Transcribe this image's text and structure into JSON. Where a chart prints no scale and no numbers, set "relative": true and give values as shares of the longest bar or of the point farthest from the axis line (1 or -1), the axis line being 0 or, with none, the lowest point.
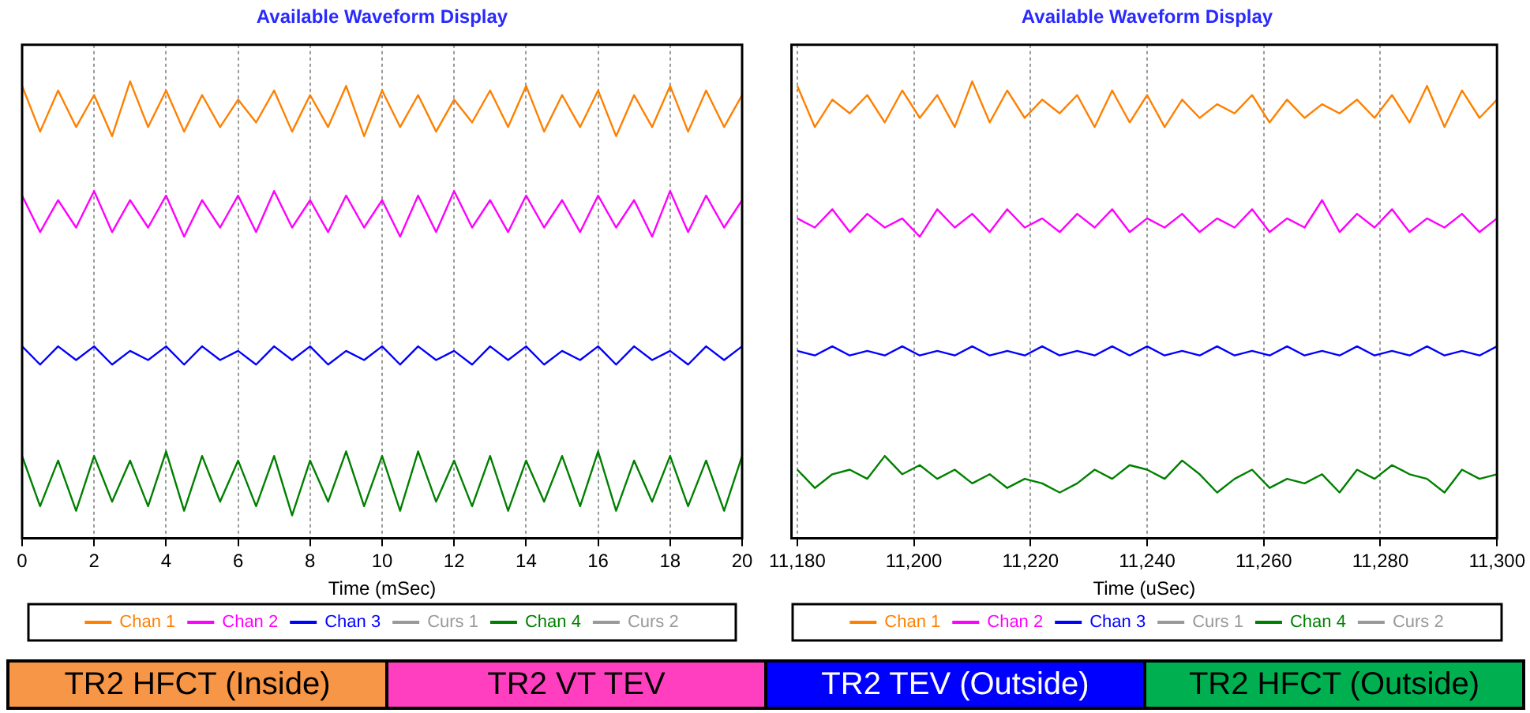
{
  "chart_data": [
    {
      "type": "line",
      "title": "Available Waveform Display",
      "xlabel": "Time (mSec)",
      "relative": true,
      "grid": "x",
      "legend": "bottom",
      "marker": "none",
      "line_style": "solid",
      "x": [
        0,
        0.5,
        1,
        1.5,
        2,
        2.5,
        3,
        3.5,
        4,
        4.5,
        5,
        5.5,
        6,
        6.5,
        7,
        7.5,
        8,
        8.5,
        9,
        9.5,
        10,
        10.5,
        11,
        11.5,
        12,
        12.5,
        13,
        13.5,
        14,
        14.5,
        15,
        15.5,
        16,
        16.5,
        17,
        17.5,
        18,
        18.5,
        19,
        19.5,
        20
      ],
      "xlim": [
        0,
        20
      ],
      "xticks": [
        0,
        2,
        4,
        6,
        8,
        10,
        12,
        14,
        16,
        18,
        20
      ],
      "series": [
        {
          "name": "Chan 1",
          "color": "#ff8000",
          "values": [
            0.99,
            0.89,
            0.98,
            0.9,
            0.97,
            0.88,
            1,
            0.9,
            0.98,
            0.89,
            0.97,
            0.9,
            0.96,
            0.91,
            0.98,
            0.89,
            0.97,
            0.9,
            0.99,
            0.88,
            0.98,
            0.9,
            0.97,
            0.89,
            0.96,
            0.91,
            0.98,
            0.9,
            0.99,
            0.89,
            0.97,
            0.9,
            0.98,
            0.88,
            0.97,
            0.9,
            0.99,
            0.89,
            0.98,
            0.9,
            0.97
          ]
        },
        {
          "name": "Chan 2",
          "color": "#ff00ff",
          "values": [
            0.75,
            0.67,
            0.74,
            0.68,
            0.76,
            0.67,
            0.74,
            0.68,
            0.75,
            0.66,
            0.74,
            0.68,
            0.75,
            0.67,
            0.76,
            0.68,
            0.74,
            0.67,
            0.75,
            0.68,
            0.74,
            0.66,
            0.75,
            0.67,
            0.76,
            0.68,
            0.74,
            0.67,
            0.75,
            0.68,
            0.74,
            0.67,
            0.75,
            0.68,
            0.74,
            0.66,
            0.76,
            0.67,
            0.75,
            0.68,
            0.74
          ]
        },
        {
          "name": "Chan 3",
          "color": "#0000ff",
          "values": [
            0.42,
            0.38,
            0.42,
            0.39,
            0.42,
            0.38,
            0.41,
            0.39,
            0.42,
            0.38,
            0.42,
            0.39,
            0.41,
            0.38,
            0.42,
            0.39,
            0.42,
            0.38,
            0.41,
            0.39,
            0.42,
            0.38,
            0.42,
            0.39,
            0.41,
            0.38,
            0.42,
            0.39,
            0.42,
            0.38,
            0.41,
            0.39,
            0.42,
            0.38,
            0.42,
            0.39,
            0.41,
            0.38,
            0.42,
            0.39,
            0.42
          ]
        },
        {
          "name": "Curs 1",
          "color": "#999999",
          "values": [
            null,
            null,
            null,
            null,
            null,
            null,
            null,
            null,
            null,
            null,
            null,
            null,
            null,
            null,
            null,
            null,
            null,
            null,
            null,
            null,
            null,
            null,
            null,
            null,
            null,
            null,
            null,
            null,
            null,
            null,
            null,
            null,
            null,
            null,
            null,
            null,
            null,
            null,
            null,
            null,
            null
          ]
        },
        {
          "name": "Chan 4",
          "color": "#008000",
          "values": [
            0.18,
            0.07,
            0.17,
            0.06,
            0.18,
            0.08,
            0.17,
            0.07,
            0.19,
            0.06,
            0.18,
            0.08,
            0.17,
            0.07,
            0.18,
            0.05,
            0.17,
            0.08,
            0.19,
            0.07,
            0.18,
            0.06,
            0.19,
            0.08,
            0.17,
            0.07,
            0.18,
            0.06,
            0.17,
            0.08,
            0.18,
            0.07,
            0.19,
            0.06,
            0.17,
            0.08,
            0.18,
            0.07,
            0.17,
            0.06,
            0.18
          ]
        },
        {
          "name": "Curs 2",
          "color": "#999999",
          "values": [
            null,
            null,
            null,
            null,
            null,
            null,
            null,
            null,
            null,
            null,
            null,
            null,
            null,
            null,
            null,
            null,
            null,
            null,
            null,
            null,
            null,
            null,
            null,
            null,
            null,
            null,
            null,
            null,
            null,
            null,
            null,
            null,
            null,
            null,
            null,
            null,
            null,
            null,
            null,
            null,
            null
          ]
        }
      ]
    },
    {
      "type": "line",
      "title": "Available Waveform Display",
      "xlabel": "Time (uSec)",
      "relative": true,
      "grid": "x",
      "legend": "bottom",
      "marker": "none",
      "line_style": "solid",
      "x": [
        11180,
        11183,
        11186,
        11189,
        11192,
        11195,
        11198,
        11201,
        11204,
        11207,
        11210,
        11213,
        11216,
        11219,
        11222,
        11225,
        11228,
        11231,
        11234,
        11237,
        11240,
        11243,
        11246,
        11249,
        11252,
        11255,
        11258,
        11261,
        11264,
        11267,
        11270,
        11273,
        11276,
        11279,
        11282,
        11285,
        11288,
        11291,
        11294,
        11297,
        11300
      ],
      "xlim": [
        11179,
        11300
      ],
      "xticks": [
        {
          "value": 11180,
          "label": "11,180"
        },
        {
          "value": 11200,
          "label": "11,200"
        },
        {
          "value": 11220,
          "label": "11,220"
        },
        {
          "value": 11240,
          "label": "11,240"
        },
        {
          "value": 11260,
          "label": "11,260"
        },
        {
          "value": 11280,
          "label": "11,280"
        },
        {
          "value": 11300,
          "label": "11,300"
        }
      ],
      "series": [
        {
          "name": "Chan 1",
          "color": "#ff8000",
          "values": [
            0.99,
            0.9,
            0.96,
            0.93,
            0.97,
            0.91,
            0.98,
            0.92,
            0.97,
            0.9,
            1,
            0.91,
            0.98,
            0.92,
            0.96,
            0.93,
            0.97,
            0.9,
            0.98,
            0.91,
            0.97,
            0.9,
            0.96,
            0.92,
            0.95,
            0.93,
            0.97,
            0.91,
            0.96,
            0.92,
            0.95,
            0.93,
            0.96,
            0.92,
            0.97,
            0.91,
            0.99,
            0.9,
            0.98,
            0.92,
            0.96
          ]
        },
        {
          "name": "Chan 2",
          "color": "#ff00ff",
          "values": [
            0.7,
            0.68,
            0.72,
            0.67,
            0.71,
            0.68,
            0.7,
            0.66,
            0.72,
            0.68,
            0.71,
            0.67,
            0.72,
            0.68,
            0.7,
            0.67,
            0.71,
            0.68,
            0.72,
            0.67,
            0.7,
            0.68,
            0.71,
            0.67,
            0.7,
            0.68,
            0.72,
            0.67,
            0.7,
            0.68,
            0.74,
            0.67,
            0.71,
            0.68,
            0.72,
            0.67,
            0.7,
            0.68,
            0.71,
            0.67,
            0.7
          ]
        },
        {
          "name": "Chan 3",
          "color": "#0000ff",
          "values": [
            0.41,
            0.4,
            0.42,
            0.4,
            0.41,
            0.4,
            0.42,
            0.4,
            0.41,
            0.4,
            0.42,
            0.4,
            0.41,
            0.4,
            0.42,
            0.4,
            0.41,
            0.4,
            0.42,
            0.4,
            0.42,
            0.4,
            0.41,
            0.4,
            0.42,
            0.4,
            0.41,
            0.4,
            0.42,
            0.4,
            0.41,
            0.4,
            0.42,
            0.4,
            0.41,
            0.4,
            0.42,
            0.4,
            0.41,
            0.4,
            0.42
          ]
        },
        {
          "name": "Curs 1",
          "color": "#999999",
          "values": [
            null,
            null,
            null,
            null,
            null,
            null,
            null,
            null,
            null,
            null,
            null,
            null,
            null,
            null,
            null,
            null,
            null,
            null,
            null,
            null,
            null,
            null,
            null,
            null,
            null,
            null,
            null,
            null,
            null,
            null,
            null,
            null,
            null,
            null,
            null,
            null,
            null,
            null,
            null,
            null,
            null
          ]
        },
        {
          "name": "Chan 4",
          "color": "#008000",
          "values": [
            0.15,
            0.11,
            0.14,
            0.15,
            0.13,
            0.18,
            0.14,
            0.16,
            0.13,
            0.15,
            0.12,
            0.14,
            0.11,
            0.13,
            0.12,
            0.1,
            0.12,
            0.15,
            0.13,
            0.16,
            0.15,
            0.13,
            0.17,
            0.14,
            0.1,
            0.13,
            0.15,
            0.11,
            0.13,
            0.12,
            0.14,
            0.1,
            0.15,
            0.13,
            0.16,
            0.14,
            0.13,
            0.1,
            0.15,
            0.13,
            0.14
          ]
        },
        {
          "name": "Curs 2",
          "color": "#999999",
          "values": [
            null,
            null,
            null,
            null,
            null,
            null,
            null,
            null,
            null,
            null,
            null,
            null,
            null,
            null,
            null,
            null,
            null,
            null,
            null,
            null,
            null,
            null,
            null,
            null,
            null,
            null,
            null,
            null,
            null,
            null,
            null,
            null,
            null,
            null,
            null,
            null,
            null,
            null,
            null,
            null,
            null
          ]
        }
      ]
    },
    {
      "type": "other",
      "annotations": [
        "TR2 HFCT (Inside)",
        "TR2 VT TEV",
        "TR2 TEV (Outside)",
        "TR2 HFCT (Outside)"
      ],
      "colors": [
        "#f79646",
        "#ff3fbf",
        "#0000ff",
        "#00b050"
      ]
    }
  ]
}
